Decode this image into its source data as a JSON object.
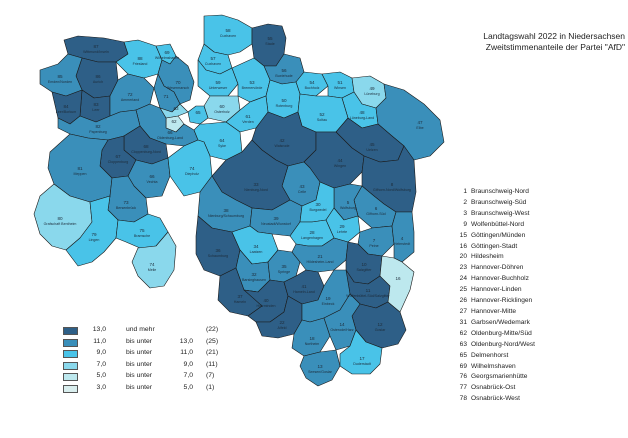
{
  "title": {
    "line1": "Landtagswahl 2022 in Niedersachsen",
    "line2": "Zweitstimmenanteile der Partei \"AfD\""
  },
  "colors": {
    "c13": "#2e5f87",
    "c11": "#3a8fba",
    "c9": "#49c3e8",
    "c7": "#8ad8ec",
    "c5": "#bde8ee",
    "c3": "#d9eeee",
    "border": "#1a1a1a",
    "label": "#1e2c3a"
  },
  "legend": {
    "items": [
      {
        "low": "13,0",
        "relation": "und mehr",
        "high": "",
        "count": "(22)",
        "color": "#2e5f87"
      },
      {
        "low": "11,0",
        "relation": "bis unter",
        "high": "13,0",
        "count": "(25)",
        "color": "#3a8fba"
      },
      {
        "low": "9,0",
        "relation": "bis unter",
        "high": "11,0",
        "count": "(21)",
        "color": "#49c3e8"
      },
      {
        "low": "7,0",
        "relation": "bis unter",
        "high": "9,0",
        "count": "(11)",
        "color": "#8ad8ec"
      },
      {
        "low": "5,0",
        "relation": "bis unter",
        "high": "7,0",
        "count": "(7)",
        "color": "#bde8ee"
      },
      {
        "low": "3,0",
        "relation": "bis unter",
        "high": "5,0",
        "count": "(1)",
        "color": "#d9eeee"
      }
    ]
  },
  "district_key": [
    {
      "num": "1",
      "name": "Braunschweig-Nord"
    },
    {
      "num": "2",
      "name": "Braunschweig-Süd"
    },
    {
      "num": "3",
      "name": "Braunschweig-West"
    },
    {
      "num": "9",
      "name": "Wolfenbüttel-Nord"
    },
    {
      "num": "15",
      "name": "Göttingen/Münden"
    },
    {
      "num": "16",
      "name": "Göttingen-Stadt"
    },
    {
      "num": "20",
      "name": "Hildesheim"
    },
    {
      "num": "23",
      "name": "Hannover-Döhren"
    },
    {
      "num": "24",
      "name": "Hannover-Buchholz"
    },
    {
      "num": "25",
      "name": "Hannover-Linden"
    },
    {
      "num": "26",
      "name": "Hannover-Ricklingen"
    },
    {
      "num": "27",
      "name": "Hannover-Mitte"
    },
    {
      "num": "31",
      "name": "Garbsen/Wedemark"
    },
    {
      "num": "62",
      "name": "Oldenburg-Mitte/Süd"
    },
    {
      "num": "63",
      "name": "Oldenburg-Nord/West"
    },
    {
      "num": "65",
      "name": "Delmenhorst"
    },
    {
      "num": "69",
      "name": "Wilhelmshaven"
    },
    {
      "num": "76",
      "name": "Georgsmarienhütte"
    },
    {
      "num": "77",
      "name": "Osnabrück-Ost"
    },
    {
      "num": "78",
      "name": "Osnabrück-West"
    }
  ],
  "districts": [
    {
      "num": "58",
      "name": "Cuxhaven",
      "cls": "c9"
    },
    {
      "num": "57",
      "name": "Cuxhaven",
      "cls": "c9"
    },
    {
      "num": "55",
      "name": "Stade",
      "cls": "c13"
    },
    {
      "num": "56",
      "name": "Buxtehude",
      "cls": "c11"
    },
    {
      "num": "54",
      "name": "Buchholz",
      "cls": "c9"
    },
    {
      "num": "51",
      "name": "Winsen",
      "cls": "c9"
    },
    {
      "num": "49",
      "name": "Lüneburg",
      "cls": "c7"
    },
    {
      "num": "48",
      "name": "Lüneburg-Land",
      "cls": "c9"
    },
    {
      "num": "47",
      "name": "Elbe",
      "cls": "c11"
    },
    {
      "num": "59",
      "name": "Unterweser",
      "cls": "c9"
    },
    {
      "num": "53",
      "name": "Bremervörde",
      "cls": "c9"
    },
    {
      "num": "50",
      "name": "Rotenburg",
      "cls": "c9"
    },
    {
      "num": "60",
      "name": "Osterholz",
      "cls": "c7"
    },
    {
      "num": "52",
      "name": "Soltau",
      "cls": "c9"
    },
    {
      "num": "45",
      "name": "Uelzen",
      "cls": "c13"
    },
    {
      "num": "87",
      "name": "Wittmund/Inseln",
      "cls": "c13"
    },
    {
      "num": "86",
      "name": "Aurich",
      "cls": "c13"
    },
    {
      "num": "85",
      "name": "Emden/Norden",
      "cls": "c11"
    },
    {
      "num": "88",
      "name": "Friesland",
      "cls": "c9"
    },
    {
      "num": "69",
      "name": "Wilhelmshaven",
      "cls": "c9"
    },
    {
      "num": "70",
      "name": "Wesermarsch",
      "cls": "c11"
    },
    {
      "num": "83",
      "name": "Leer",
      "cls": "c13"
    },
    {
      "num": "84",
      "name": "Leer/Borkum",
      "cls": "c13"
    },
    {
      "num": "72",
      "name": "Ammerland",
      "cls": "c11"
    },
    {
      "num": "71",
      "name": "",
      "cls": "c11"
    },
    {
      "num": "62",
      "name": "",
      "cls": "c5"
    },
    {
      "num": "63",
      "name": "",
      "cls": "c7"
    },
    {
      "num": "65",
      "name": "",
      "cls": "c9"
    },
    {
      "num": "61",
      "name": "Verden",
      "cls": "c9"
    },
    {
      "num": "66",
      "name": "Oldenburg-Land",
      "cls": "c11"
    },
    {
      "num": "82",
      "name": "Papenburg",
      "cls": "c11"
    },
    {
      "num": "68",
      "name": "Cloppenburg-Nord",
      "cls": "c13"
    },
    {
      "num": "64",
      "name": "Syke",
      "cls": "c9"
    },
    {
      "num": "67",
      "name": "Cloppenburg",
      "cls": "c13"
    },
    {
      "num": "81",
      "name": "Meppen",
      "cls": "c11"
    },
    {
      "num": "66",
      "name": "Vechta",
      "cls": "c11"
    },
    {
      "num": "74",
      "name": "Diepholz",
      "cls": "c9"
    },
    {
      "num": "42",
      "name": "Walsrode",
      "cls": "c13"
    },
    {
      "num": "44",
      "name": "Wingen",
      "cls": "c13"
    },
    {
      "num": "43",
      "name": "Celle",
      "cls": "c11"
    },
    {
      "num": "8",
      "name": "Gifhorn-Nord/Wolfsburg",
      "cls": "c13"
    },
    {
      "num": "6",
      "name": "Gifhorn-Süd",
      "cls": "c11"
    },
    {
      "num": "5",
      "name": "Wolfsburg",
      "cls": "c11"
    },
    {
      "num": "73",
      "name": "Bersenbrück",
      "cls": "c11"
    },
    {
      "num": "33",
      "name": "Nienburg-Nord",
      "cls": "c13"
    },
    {
      "num": "38",
      "name": "Nienburg/Schaumburg",
      "cls": "c11"
    },
    {
      "num": "39",
      "name": "Neustadt/Wunstorf",
      "cls": "c11"
    },
    {
      "num": "30",
      "name": "Burgwedel",
      "cls": "c9"
    },
    {
      "num": "29",
      "name": "Lehrte",
      "cls": "c9"
    },
    {
      "num": "7",
      "name": "Peine",
      "cls": "c11"
    },
    {
      "num": "4",
      "name": "Helmstedt",
      "cls": "c11"
    },
    {
      "num": "80",
      "name": "Grafschaft Bentheim",
      "cls": "c7"
    },
    {
      "num": "79",
      "name": "Lingen",
      "cls": "c9"
    },
    {
      "num": "75",
      "name": "Bramsche",
      "cls": "c9"
    },
    {
      "num": "36",
      "name": "Schaumburg",
      "cls": "c13"
    },
    {
      "num": "34",
      "name": "Laatzen",
      "cls": "c9"
    },
    {
      "num": "28",
      "name": "Langenhagen",
      "cls": "c9"
    },
    {
      "num": "32",
      "name": "Barsinghausen",
      "cls": "c11"
    },
    {
      "num": "35",
      "name": "Springe",
      "cls": "c11"
    },
    {
      "num": "37",
      "name": "Hameln",
      "cls": "c13"
    },
    {
      "num": "21",
      "name": "Hildesheim-Land",
      "cls": "c11"
    },
    {
      "num": "10",
      "name": "Salzgitter",
      "cls": "c13"
    },
    {
      "num": "11",
      "name": "Wolfenbüttel-Süd/Salzgitter",
      "cls": "c13"
    },
    {
      "num": "74",
      "name": "Melle",
      "cls": "c7"
    },
    {
      "num": "40",
      "name": "Holzminden",
      "cls": "c13"
    },
    {
      "num": "41",
      "name": "Hameln-Land",
      "cls": "c13"
    },
    {
      "num": "22",
      "name": "Alfeld",
      "cls": "c13"
    },
    {
      "num": "19",
      "name": "Einbeck",
      "cls": "c11"
    },
    {
      "num": "18",
      "name": "Northeim",
      "cls": "c11"
    },
    {
      "num": "12",
      "name": "Goslar",
      "cls": "c13"
    },
    {
      "num": "14",
      "name": "Osterode/Harz",
      "cls": "c11"
    },
    {
      "num": "17",
      "name": "Duderstadt",
      "cls": "c9"
    },
    {
      "num": "13",
      "name": "Seesen/Goslar",
      "cls": "c11"
    },
    {
      "num": "16",
      "name": "",
      "cls": "c5"
    }
  ]
}
